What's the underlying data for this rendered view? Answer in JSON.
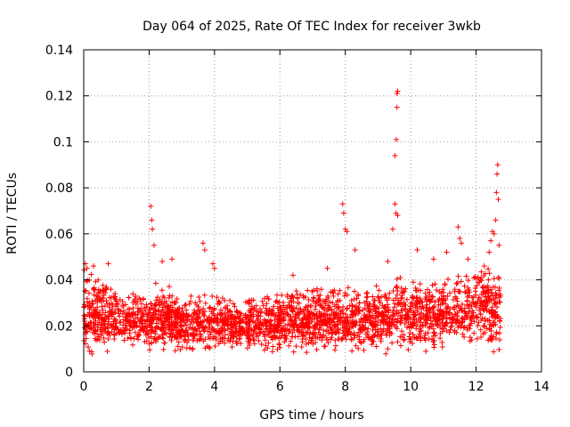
{
  "chart_data": {
    "type": "scatter",
    "title": "Day 064 of 2025, Rate Of TEC Index for receiver 3wkb",
    "xlabel": "GPS time / hours",
    "ylabel": "ROTI / TECUs",
    "xlim": [
      0,
      14
    ],
    "ylim": [
      0,
      0.14
    ],
    "grid": true,
    "marker": "+",
    "color": "#ff0000",
    "x_ticks": [
      0,
      2,
      4,
      6,
      8,
      10,
      12,
      14
    ],
    "x_tick_labels": [
      "0",
      "2",
      "4",
      "6",
      "8",
      "10",
      "12",
      "14"
    ],
    "y_ticks": [
      0,
      0.02,
      0.04,
      0.06,
      0.08,
      0.1,
      0.12,
      0.14
    ],
    "y_tick_labels": [
      "0",
      "0.02",
      "0.04",
      "0.06",
      "0.08",
      "0.1",
      "0.12",
      "0.14"
    ],
    "data_range": {
      "x_min": 0,
      "x_max": 12.75
    },
    "baseline": {
      "x": [
        0,
        0.5,
        1,
        1.5,
        2,
        2.5,
        3,
        3.5,
        4,
        4.5,
        5,
        5.5,
        6,
        6.5,
        7,
        7.5,
        8,
        8.5,
        9,
        9.5,
        10,
        10.5,
        11,
        11.5,
        12,
        12.5,
        12.75
      ],
      "mean": [
        0.022,
        0.019,
        0.018,
        0.017,
        0.018,
        0.018,
        0.017,
        0.017,
        0.017,
        0.016,
        0.016,
        0.017,
        0.017,
        0.017,
        0.018,
        0.018,
        0.018,
        0.018,
        0.019,
        0.02,
        0.021,
        0.02,
        0.02,
        0.021,
        0.022,
        0.023,
        0.022
      ],
      "upper": [
        0.045,
        0.04,
        0.036,
        0.034,
        0.04,
        0.038,
        0.034,
        0.033,
        0.035,
        0.03,
        0.032,
        0.033,
        0.034,
        0.036,
        0.037,
        0.036,
        0.038,
        0.035,
        0.038,
        0.042,
        0.04,
        0.038,
        0.04,
        0.044,
        0.045,
        0.048,
        0.044
      ]
    },
    "spikes": [
      {
        "x": 0.05,
        "y": 0.047
      },
      {
        "x": 0.1,
        "y": 0.045
      },
      {
        "x": 0.3,
        "y": 0.046
      },
      {
        "x": 0.75,
        "y": 0.047
      },
      {
        "x": 2.05,
        "y": 0.072
      },
      {
        "x": 2.08,
        "y": 0.066
      },
      {
        "x": 2.1,
        "y": 0.062
      },
      {
        "x": 2.15,
        "y": 0.055
      },
      {
        "x": 2.4,
        "y": 0.048
      },
      {
        "x": 2.7,
        "y": 0.049
      },
      {
        "x": 3.65,
        "y": 0.056
      },
      {
        "x": 3.7,
        "y": 0.053
      },
      {
        "x": 3.95,
        "y": 0.047
      },
      {
        "x": 4.0,
        "y": 0.045
      },
      {
        "x": 6.4,
        "y": 0.042
      },
      {
        "x": 7.45,
        "y": 0.045
      },
      {
        "x": 7.92,
        "y": 0.073
      },
      {
        "x": 7.95,
        "y": 0.069
      },
      {
        "x": 8.0,
        "y": 0.062
      },
      {
        "x": 8.05,
        "y": 0.061
      },
      {
        "x": 8.3,
        "y": 0.053
      },
      {
        "x": 9.3,
        "y": 0.048
      },
      {
        "x": 9.45,
        "y": 0.062
      },
      {
        "x": 9.52,
        "y": 0.073
      },
      {
        "x": 9.55,
        "y": 0.069
      },
      {
        "x": 9.6,
        "y": 0.068
      },
      {
        "x": 9.52,
        "y": 0.094
      },
      {
        "x": 9.56,
        "y": 0.101
      },
      {
        "x": 9.58,
        "y": 0.115
      },
      {
        "x": 9.58,
        "y": 0.121
      },
      {
        "x": 9.6,
        "y": 0.122
      },
      {
        "x": 10.2,
        "y": 0.053
      },
      {
        "x": 10.7,
        "y": 0.049
      },
      {
        "x": 11.1,
        "y": 0.052
      },
      {
        "x": 11.45,
        "y": 0.063
      },
      {
        "x": 11.5,
        "y": 0.058
      },
      {
        "x": 11.55,
        "y": 0.056
      },
      {
        "x": 11.75,
        "y": 0.049
      },
      {
        "x": 12.4,
        "y": 0.052
      },
      {
        "x": 12.45,
        "y": 0.057
      },
      {
        "x": 12.5,
        "y": 0.061
      },
      {
        "x": 12.55,
        "y": 0.06
      },
      {
        "x": 12.6,
        "y": 0.066
      },
      {
        "x": 12.62,
        "y": 0.078
      },
      {
        "x": 12.64,
        "y": 0.086
      },
      {
        "x": 12.66,
        "y": 0.09
      },
      {
        "x": 12.68,
        "y": 0.075
      },
      {
        "x": 12.7,
        "y": 0.055
      }
    ]
  }
}
